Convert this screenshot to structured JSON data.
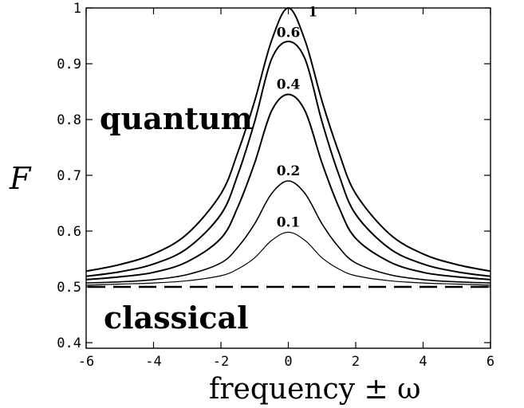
{
  "chart_data": {
    "type": "line",
    "title": "",
    "xlabel": "frequency ± ω",
    "ylabel": "F",
    "xlim": [
      -6,
      6
    ],
    "ylim": [
      0.39,
      1.0
    ],
    "x_ticks": [
      -6,
      -4,
      -2,
      0,
      2,
      4,
      6
    ],
    "x_tick_labels": [
      "-6",
      "-4",
      "-2",
      "0",
      "2",
      "4",
      "6"
    ],
    "y_ticks": [
      0.4,
      0.5,
      0.6,
      0.7,
      0.8,
      0.9,
      1.0
    ],
    "y_tick_labels": [
      "0.4",
      "0.5",
      "0.6",
      "0.7",
      "0.8",
      "0.9",
      "1"
    ],
    "grid": false,
    "legend": "none",
    "x": [
      -6,
      -5,
      -4,
      -3,
      -2,
      -1.5,
      -1,
      -0.5,
      0,
      0.5,
      1,
      1.5,
      2,
      3,
      4,
      5,
      6
    ],
    "series": [
      {
        "name": "1",
        "values": [
          0.528,
          0.54,
          0.559,
          0.595,
          0.667,
          0.741,
          0.833,
          0.941,
          1.0,
          0.941,
          0.833,
          0.741,
          0.667,
          0.595,
          0.559,
          0.54,
          0.528
        ]
      },
      {
        "name": "0.6",
        "values": [
          0.519,
          0.527,
          0.541,
          0.569,
          0.63,
          0.701,
          0.796,
          0.908,
          0.94,
          0.908,
          0.796,
          0.701,
          0.63,
          0.569,
          0.541,
          0.527,
          0.519
        ]
      },
      {
        "name": "0.4",
        "values": [
          0.513,
          0.518,
          0.526,
          0.545,
          0.587,
          0.643,
          0.722,
          0.815,
          0.845,
          0.815,
          0.722,
          0.643,
          0.587,
          0.545,
          0.526,
          0.518,
          0.513
        ]
      },
      {
        "name": "0.2",
        "values": [
          0.507,
          0.509,
          0.513,
          0.522,
          0.543,
          0.571,
          0.613,
          0.667,
          0.69,
          0.667,
          0.613,
          0.571,
          0.543,
          0.522,
          0.513,
          0.509,
          0.507
        ]
      },
      {
        "name": "0.1",
        "values": [
          0.503,
          0.505,
          0.507,
          0.511,
          0.52,
          0.532,
          0.552,
          0.583,
          0.598,
          0.583,
          0.552,
          0.532,
          0.52,
          0.511,
          0.507,
          0.505,
          0.503
        ]
      }
    ],
    "reference_line": {
      "y": 0.5,
      "style": "dashed"
    },
    "annotations": [
      {
        "text": "quantum",
        "x": -4.8,
        "y": 0.82
      },
      {
        "text": "classical",
        "x": -5.2,
        "y": 0.455
      }
    ]
  }
}
